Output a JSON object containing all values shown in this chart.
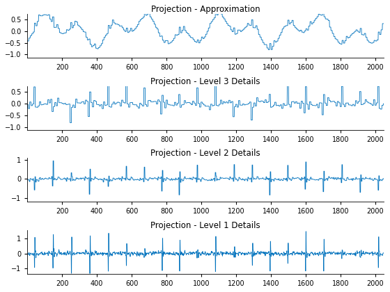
{
  "titles": [
    "Projection - Approximation",
    "Projection - Level 3 Details",
    "Projection - Level 2 Details",
    "Projection - Level 1 Details"
  ],
  "line_color": "#0072BD",
  "line_width": 0.6,
  "xlim": [
    1,
    2048
  ],
  "xticks": [
    200,
    400,
    600,
    800,
    1000,
    1200,
    1400,
    1600,
    1800,
    2000
  ],
  "yticks_approx": [
    -1,
    -0.5,
    0,
    0.5
  ],
  "yticks_lv3": [
    -1,
    -0.5,
    0,
    0.5
  ],
  "yticks_lv2": [
    -1,
    0,
    1
  ],
  "yticks_lv1": [
    -1,
    0,
    1
  ],
  "ylim_approx": [
    -1.15,
    0.75
  ],
  "ylim_lv3": [
    -1.1,
    0.75
  ],
  "ylim_lv2": [
    -1.2,
    1.1
  ],
  "ylim_lv1": [
    -1.4,
    1.6
  ],
  "n_points": 2048,
  "figsize": [
    5.6,
    4.2
  ],
  "dpi": 100,
  "title_fontsize": 8.5,
  "tick_fontsize": 7,
  "bg_color": "#ffffff"
}
